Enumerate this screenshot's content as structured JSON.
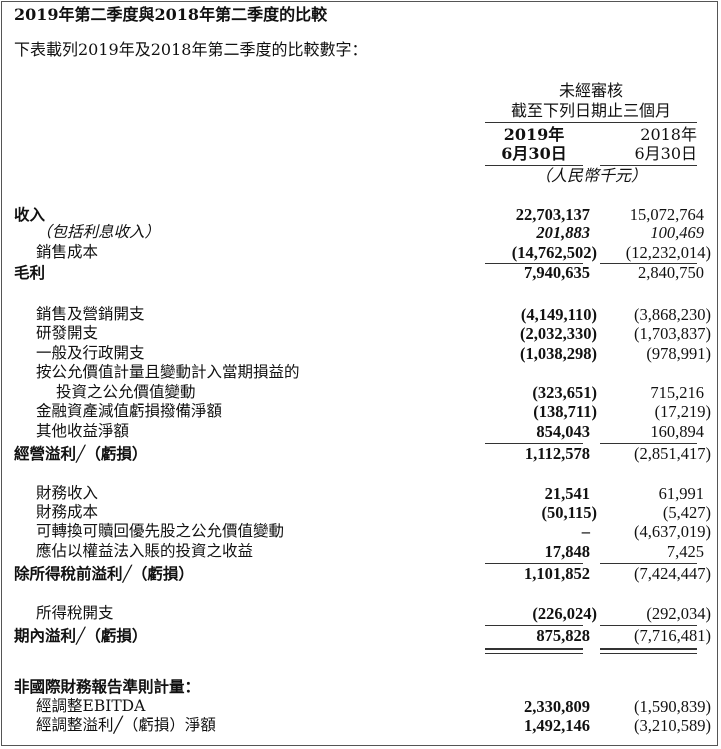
{
  "title": "2019年第二季度與2018年第二季度的比較",
  "intro": "下表載列2019年及2018年第二季度的比較數字：",
  "header": {
    "line1": "未經審核",
    "line2": "截至下列日期止三個月",
    "col1_year": "2019年",
    "col1_date": "6月30日",
    "col2_year": "2018年",
    "col2_date": "6月30日",
    "unit": "（人民幣千元）"
  },
  "rows": [
    {
      "label": "收入",
      "v2019": "22,703,137",
      "v2018": "15,072,764"
    },
    {
      "label": "（包括利息收入）",
      "v2019": "201,883",
      "v2018": "100,469"
    },
    {
      "label": "銷售成本",
      "v2019": "(14,762,502)",
      "v2018": "(12,232,014)"
    },
    {
      "label": "毛利",
      "v2019": "7,940,635",
      "v2018": "2,840,750"
    },
    {
      "label": "銷售及營銷開支",
      "v2019": "(4,149,110)",
      "v2018": "(3,868,230)"
    },
    {
      "label": "研發開支",
      "v2019": "(2,032,330)",
      "v2018": "(1,703,837)"
    },
    {
      "label": "一般及行政開支",
      "v2019": "(1,038,298)",
      "v2018": "(978,991)"
    },
    {
      "label": "按公允價值計量且變動計入當期損益的",
      "v2019": "",
      "v2018": ""
    },
    {
      "label": "投資之公允價值變動",
      "v2019": "(323,651)",
      "v2018": "715,216"
    },
    {
      "label": "金融資產減值虧損撥備淨額",
      "v2019": "(138,711)",
      "v2018": "(17,219)"
    },
    {
      "label": "其他收益淨額",
      "v2019": "854,043",
      "v2018": "160,894"
    },
    {
      "label": "經營溢利╱（虧損）",
      "v2019": "1,112,578",
      "v2018": "(2,851,417)"
    },
    {
      "label": "財務收入",
      "v2019": "21,541",
      "v2018": "61,991"
    },
    {
      "label": "財務成本",
      "v2019": "(50,115)",
      "v2018": "(5,427)"
    },
    {
      "label": "可轉換可贖回優先股之公允價值變動",
      "v2019": "–",
      "v2018": "(4,637,019)"
    },
    {
      "label": "應佔以權益法入賬的投資之收益",
      "v2019": "17,848",
      "v2018": "7,425"
    },
    {
      "label": "除所得稅前溢利╱（虧損）",
      "v2019": "1,101,852",
      "v2018": "(7,424,447)"
    },
    {
      "label": "所得稅開支",
      "v2019": "(226,024)",
      "v2018": "(292,034)"
    },
    {
      "label": "期內溢利╱（虧損）",
      "v2019": "875,828",
      "v2018": "(7,716,481)"
    },
    {
      "label": "非國際財務報告準則計量：",
      "v2019": "",
      "v2018": ""
    },
    {
      "label": "經調整EBITDA",
      "v2019": "2,330,809",
      "v2018": "(1,590,839)"
    },
    {
      "label": "經調整溢利╱（虧損）淨額",
      "v2019": "1,492,146",
      "v2018": "(3,210,589)"
    }
  ]
}
